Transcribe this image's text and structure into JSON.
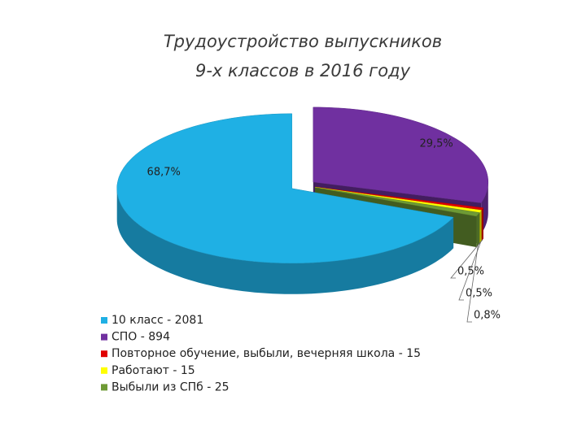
{
  "chart_data": {
    "type": "pie3d",
    "title": [
      "Трудоустройство выпускников",
      "9-х классов в 2016 году"
    ],
    "categories": [
      "10 класс - 2081",
      "СПО - 894",
      "Повторное обучение, выбыли, вечерняя школа - 15",
      "Работают - 15",
      "Выбыли из СПб - 25"
    ],
    "values": [
      68.7,
      29.5,
      0.5,
      0.5,
      0.8
    ],
    "value_labels": [
      "68,7%",
      "29,5%",
      "0,5%",
      "0,5%",
      "0,8%"
    ],
    "colors": [
      "#1fb0e4",
      "#7030a0",
      "#e00000",
      "#ffff00",
      "#6e9a35"
    ],
    "legend": "bottom-left"
  }
}
